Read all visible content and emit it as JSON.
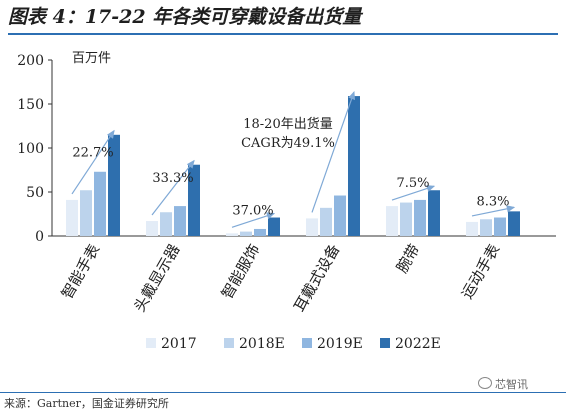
{
  "figure": {
    "title": "图表 4：17-22 年各类可穿戴设备出货量",
    "source": "来源：Gartner，国金证券研究所",
    "watermark": "芯智讯"
  },
  "chart_data": {
    "type": "bar",
    "unit_label": "百万件",
    "ylim": [
      0,
      200
    ],
    "yticks": [
      0,
      50,
      100,
      150,
      200
    ],
    "categories": [
      "智能手表",
      "头戴显示器",
      "智能服饰",
      "耳戴式设备",
      "腕带",
      "运动手表"
    ],
    "series": [
      {
        "name": "2017",
        "color": "#e3ecf7",
        "values": [
          41,
          17,
          3,
          20,
          34,
          16
        ]
      },
      {
        "name": "2018E",
        "color": "#bcd3ec",
        "values": [
          52,
          27,
          5,
          32,
          38,
          19
        ]
      },
      {
        "name": "2019E",
        "color": "#8fb6e0",
        "values": [
          73,
          34,
          8,
          46,
          41,
          21
        ]
      },
      {
        "name": "2022E",
        "color": "#2e6fae",
        "values": [
          115,
          81,
          21,
          159,
          52,
          28
        ]
      }
    ],
    "growth_labels": [
      "22.7%",
      "33.3%",
      "37.0%",
      "",
      "7.5%",
      "8.3%"
    ],
    "callout": {
      "line1": "18-20年出货量",
      "line2": "CAGR为49.1%"
    },
    "grid": false,
    "legend_position": "bottom"
  }
}
